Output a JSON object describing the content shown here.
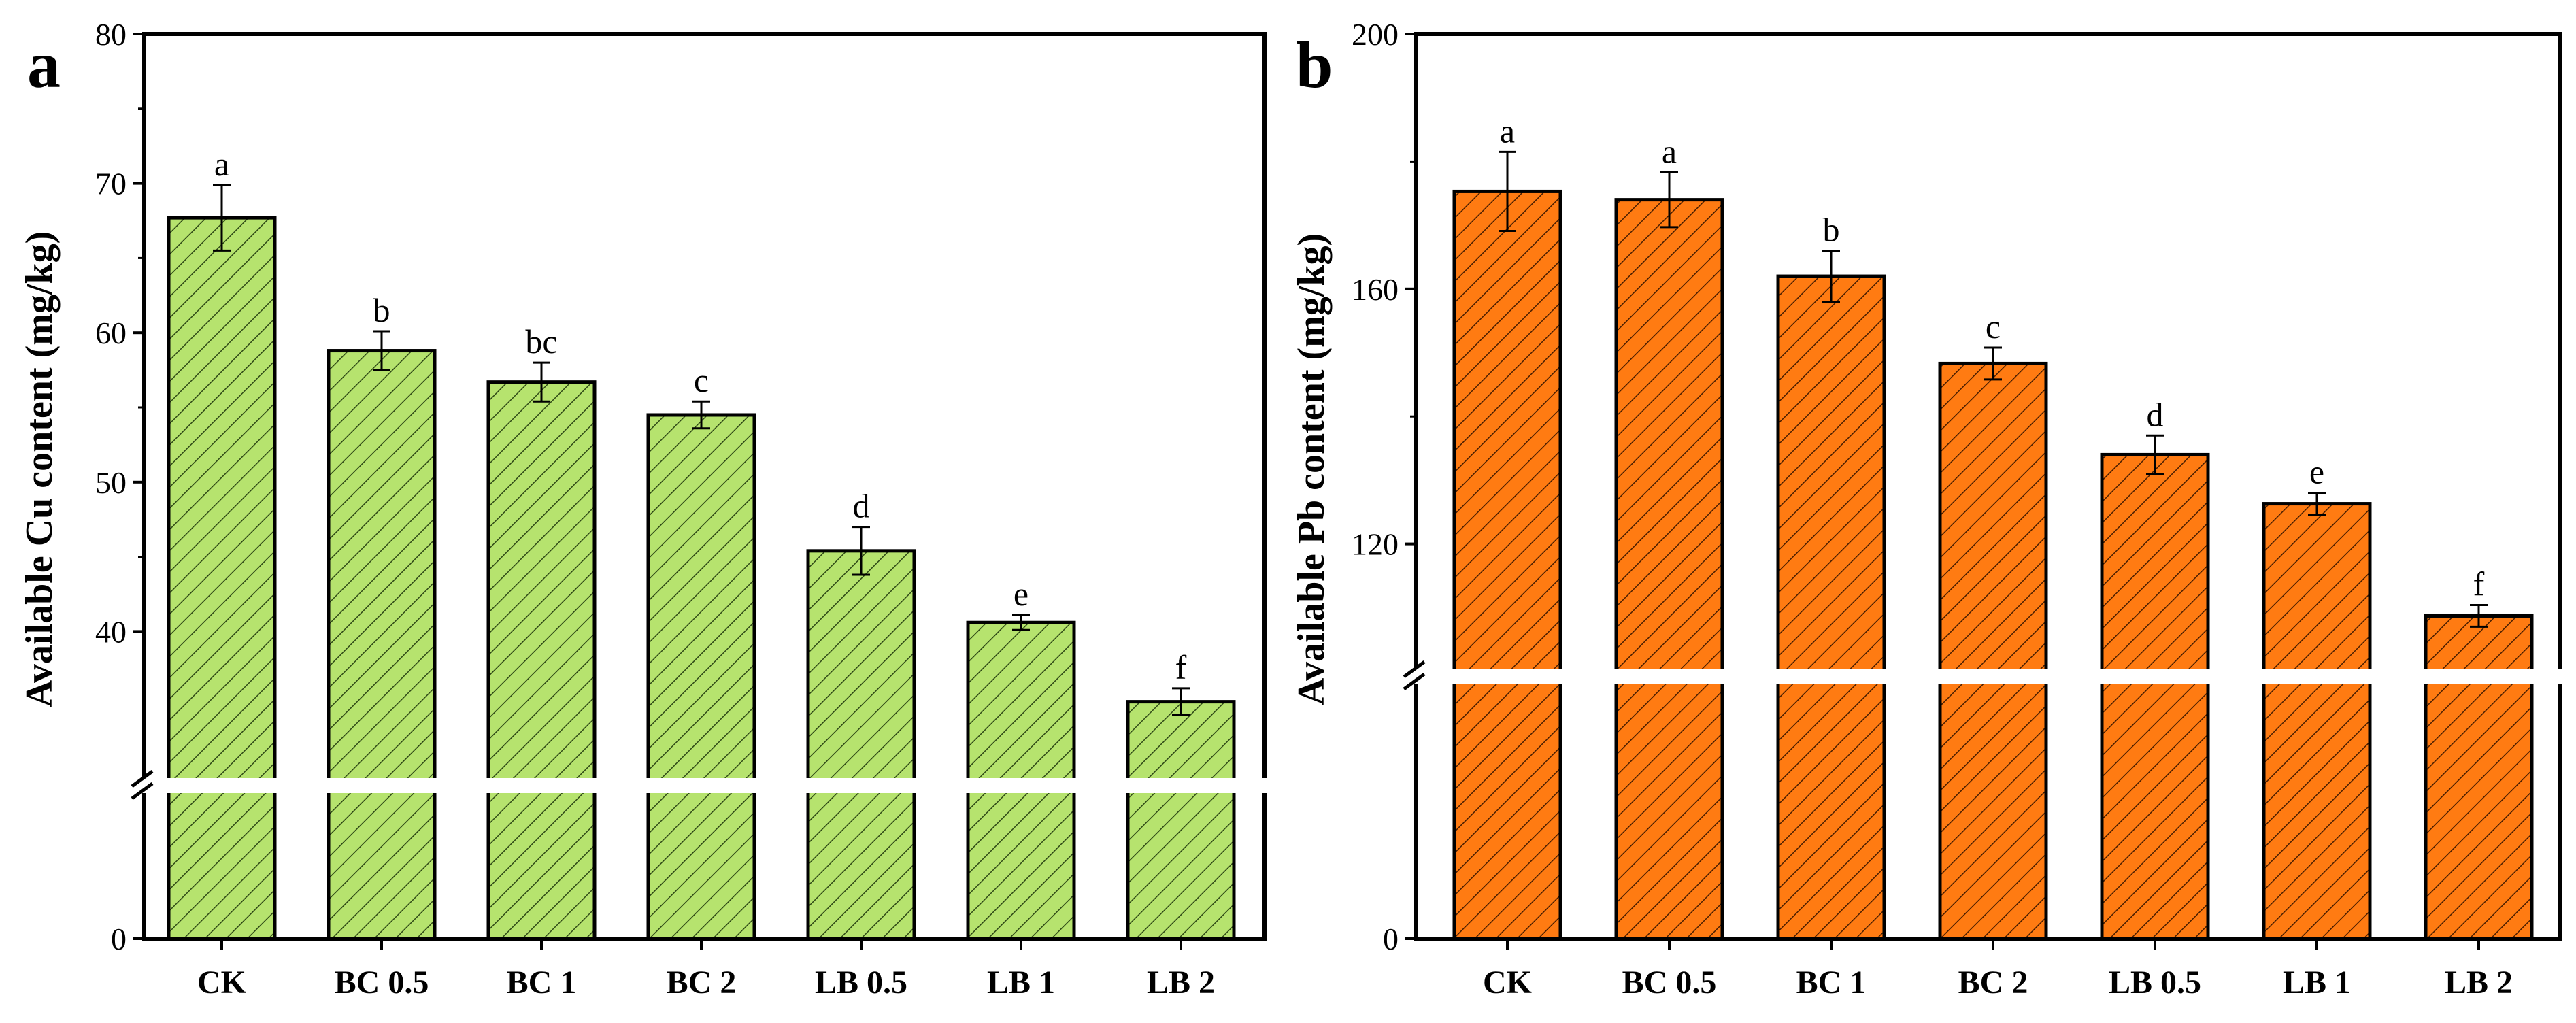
{
  "chart_data": [
    {
      "type": "bar",
      "panel_label": "a",
      "title": "",
      "xlabel": "",
      "ylabel": "Available Cu content (mg/kg)",
      "categories": [
        "CK",
        "BC 0.5",
        "BC 1",
        "BC 2",
        "LB 0.5",
        "LB 1",
        "LB 2"
      ],
      "values": [
        67.7,
        58.8,
        56.7,
        54.5,
        45.4,
        40.6,
        35.3
      ],
      "errors": [
        2.2,
        1.3,
        1.3,
        0.9,
        1.6,
        0.5,
        0.9
      ],
      "significance": [
        "a",
        "b",
        "bc",
        "c",
        "d",
        "e",
        "f"
      ],
      "y_ticks": [
        0,
        40,
        50,
        60,
        70,
        80
      ],
      "y_tick_labels": [
        "0",
        "40",
        "50",
        "60",
        "70",
        "80"
      ],
      "ylim": [
        0,
        80
      ],
      "axis_break": [
        0,
        30
      ],
      "bar_color": "#b6e36e",
      "hatch_color": "#2f4a16",
      "grid": false
    },
    {
      "type": "bar",
      "panel_label": "b",
      "title": "",
      "xlabel": "",
      "ylabel": "Available Pb content (mg/kg)",
      "categories": [
        "CK",
        "BC 0.5",
        "BC 1",
        "BC 2",
        "LB 0.5",
        "LB 1",
        "LB 2"
      ],
      "values": [
        175.3,
        174.0,
        162.0,
        148.3,
        134.0,
        126.3,
        108.7
      ],
      "errors": [
        6.2,
        4.3,
        4.0,
        2.5,
        3.0,
        1.7,
        1.7
      ],
      "significance": [
        "a",
        "a",
        "b",
        "c",
        "d",
        "e",
        "f"
      ],
      "y_ticks": [
        0,
        120,
        160,
        200
      ],
      "y_tick_labels": [
        "0",
        "120",
        "160",
        "200"
      ],
      "ylim": [
        0,
        200
      ],
      "axis_break": [
        0,
        100
      ],
      "bar_color": "#ff7b12",
      "hatch_color": "#4a1e00",
      "grid": false
    }
  ]
}
